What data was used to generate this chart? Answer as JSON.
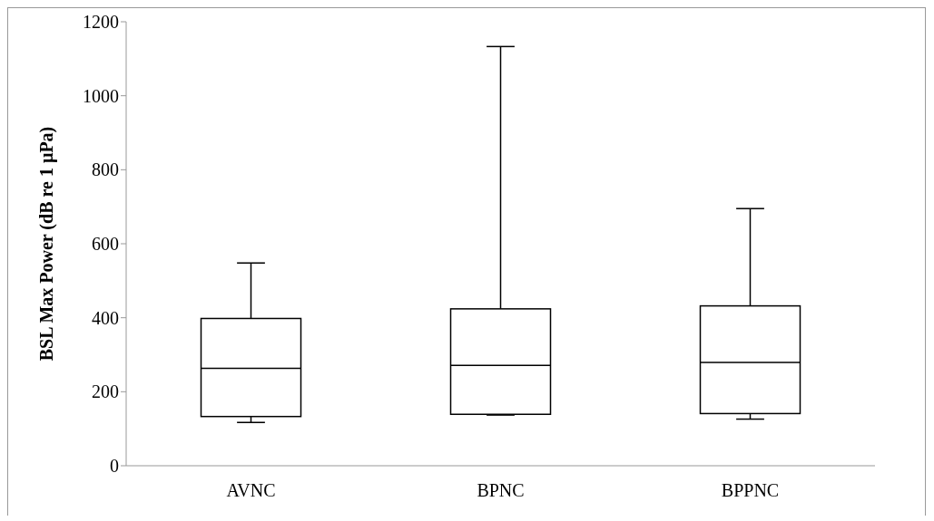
{
  "chart_data": {
    "type": "box",
    "ylabel": "BSL Max Power (dB re 1 µPa)",
    "categories": [
      "AVNC",
      "BPNC",
      "BPPNC"
    ],
    "boxes": [
      {
        "low": 117,
        "q1": 133,
        "median": 263,
        "q3": 398,
        "high": 548
      },
      {
        "low": 137,
        "q1": 139,
        "median": 271,
        "q3": 424,
        "high": 1133
      },
      {
        "low": 126,
        "q1": 141,
        "median": 279,
        "q3": 432,
        "high": 695
      }
    ],
    "color": "#000000",
    "ylim": [
      0,
      1200
    ],
    "yticks": [
      0,
      200,
      400,
      600,
      800,
      1000,
      1200
    ]
  }
}
